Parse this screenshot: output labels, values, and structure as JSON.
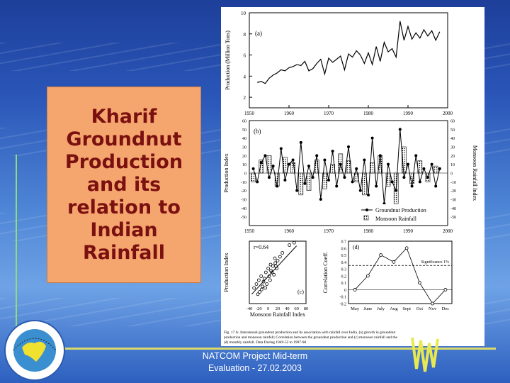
{
  "slide": {
    "title": "Kharif\nGroundnut\nProduction\nand its\nrelation to\nIndian\nRainfall",
    "footer_line1": "NATCOM Project Mid-term",
    "footer_line2": "Evaluation - 27.02.2003",
    "colors": {
      "title_box": "#f5a66f",
      "title_text": "#7a1010",
      "accent_line": "#d9d96a"
    }
  },
  "figure": {
    "caption_line1": "Fig. 17 A: Interannual groundnut production and its association with rainfall over India. (a) growth in groundnut",
    "caption_line2": "production and monsoon rainfall; Correlation between the groundnut production and (c) monsoon rainfall and the",
    "caption_line3": "(d) monthly rainfall. Data During 1949-52 to 1997-98"
  },
  "chart_data": [
    {
      "type": "line",
      "panel": "(a)",
      "ylabel": "Production (Million Tons)",
      "xlim": [
        1950,
        2000
      ],
      "ylim": [
        1,
        10
      ],
      "yticks": [
        2,
        4,
        6,
        8,
        10
      ],
      "xticks": [
        1950,
        1960,
        1970,
        1980,
        1990,
        2000
      ],
      "x": [
        1952,
        1953,
        1954,
        1955,
        1956,
        1957,
        1958,
        1959,
        1960,
        1961,
        1962,
        1963,
        1964,
        1965,
        1966,
        1967,
        1968,
        1969,
        1970,
        1971,
        1972,
        1973,
        1974,
        1975,
        1976,
        1977,
        1978,
        1979,
        1980,
        1981,
        1982,
        1983,
        1984,
        1985,
        1986,
        1987,
        1988,
        1989,
        1990,
        1991,
        1992,
        1993,
        1994,
        1995,
        1996,
        1997,
        1998
      ],
      "values": [
        3.4,
        3.5,
        3.3,
        3.8,
        4.1,
        4.3,
        4.6,
        4.5,
        4.8,
        4.9,
        5.1,
        5.0,
        5.4,
        4.5,
        4.7,
        5.2,
        5.6,
        4.2,
        5.7,
        5.3,
        5.6,
        5.9,
        4.6,
        6.1,
        5.8,
        6.4,
        6.0,
        5.2,
        6.2,
        5.1,
        6.8,
        5.4,
        7.2,
        6.3,
        6.6,
        5.8,
        9.2,
        7.4,
        8.7,
        7.5,
        8.1,
        7.6,
        8.4,
        7.8,
        8.3,
        7.4,
        8.2
      ]
    },
    {
      "type": "bar",
      "panel": "(b)",
      "ylabel": "Production Index",
      "y2label": "Monsoon Rainfall Index",
      "xticks": [
        1950,
        1960,
        1970,
        1980,
        1990,
        2000
      ],
      "ylim": [
        -60,
        60
      ],
      "yticks": [
        60,
        50,
        40,
        30,
        20,
        10,
        0,
        -10,
        -20,
        -30,
        -40,
        -50
      ],
      "series": [
        {
          "name": "Groundnut Production",
          "x": [
            1951,
            1952,
            1953,
            1954,
            1955,
            1956,
            1957,
            1958,
            1959,
            1960,
            1961,
            1962,
            1963,
            1964,
            1965,
            1966,
            1967,
            1968,
            1969,
            1970,
            1971,
            1972,
            1973,
            1974,
            1975,
            1976,
            1977,
            1978,
            1979,
            1980,
            1981,
            1982,
            1983,
            1984,
            1985,
            1986,
            1987,
            1988,
            1989,
            1990,
            1991,
            1992,
            1993,
            1994,
            1995,
            1996,
            1997,
            1998
          ],
          "values": [
            5,
            -10,
            12,
            20,
            -5,
            8,
            -15,
            28,
            -8,
            10,
            15,
            -20,
            35,
            -12,
            8,
            -5,
            20,
            -30,
            15,
            -8,
            25,
            -15,
            10,
            -5,
            30,
            -10,
            5,
            -20,
            15,
            -25,
            40,
            -15,
            20,
            -35,
            10,
            -10,
            -20,
            50,
            -5,
            10,
            -15,
            20,
            -10,
            5,
            -5,
            10,
            -15,
            5
          ]
        },
        {
          "name": "Monsoon Rainfall",
          "x": [
            1951,
            1953,
            1955,
            1957,
            1959,
            1961,
            1963,
            1965,
            1967,
            1969,
            1971,
            1973,
            1975,
            1977,
            1979,
            1981,
            1983,
            1985,
            1987,
            1989,
            1991,
            1993,
            1995,
            1997
          ],
          "values": [
            -10,
            15,
            20,
            -15,
            18,
            12,
            -25,
            -20,
            15,
            -18,
            10,
            22,
            14,
            -10,
            -25,
            12,
            20,
            -15,
            -35,
            30,
            -12,
            14,
            -10,
            8
          ]
        }
      ]
    },
    {
      "type": "scatter",
      "panel": "(c)",
      "annotation": "r=0.64",
      "xlabel": "Monsoon Rainfall Index",
      "ylabel": "Production Index",
      "xlim": [
        -40,
        80
      ],
      "ylim": [
        -40,
        40
      ],
      "xticks": [
        -40,
        -20,
        0,
        20,
        40,
        60,
        80
      ],
      "x": [
        -30,
        -25,
        -20,
        -18,
        -15,
        -12,
        -10,
        -8,
        -5,
        -3,
        0,
        2,
        5,
        8,
        10,
        12,
        15,
        18,
        20,
        -22,
        -6,
        4,
        14,
        25,
        30,
        45,
        55,
        -14,
        6,
        16
      ],
      "values": [
        -20,
        -15,
        -10,
        -25,
        -5,
        -18,
        -12,
        -8,
        0,
        -15,
        5,
        -5,
        10,
        0,
        8,
        -3,
        12,
        5,
        15,
        -28,
        -20,
        -10,
        18,
        20,
        25,
        35,
        38,
        -22,
        2,
        8
      ]
    },
    {
      "type": "line",
      "panel": "(d)",
      "ylabel": "Correlation Coeff.",
      "categories": [
        "May",
        "June",
        "July",
        "Aug",
        "Sept",
        "Oct",
        "Nov",
        "Dec"
      ],
      "values": [
        0.0,
        0.2,
        0.5,
        0.4,
        0.6,
        0.1,
        -0.2,
        0.0
      ],
      "ylim": [
        -0.2,
        0.7
      ],
      "yticks": [
        0.7,
        0.6,
        0.5,
        0.4,
        0.3,
        0.2,
        0.1,
        0.0,
        -0.1,
        -0.2
      ],
      "annotation": "Significance 1%",
      "significance": 0.35
    }
  ]
}
